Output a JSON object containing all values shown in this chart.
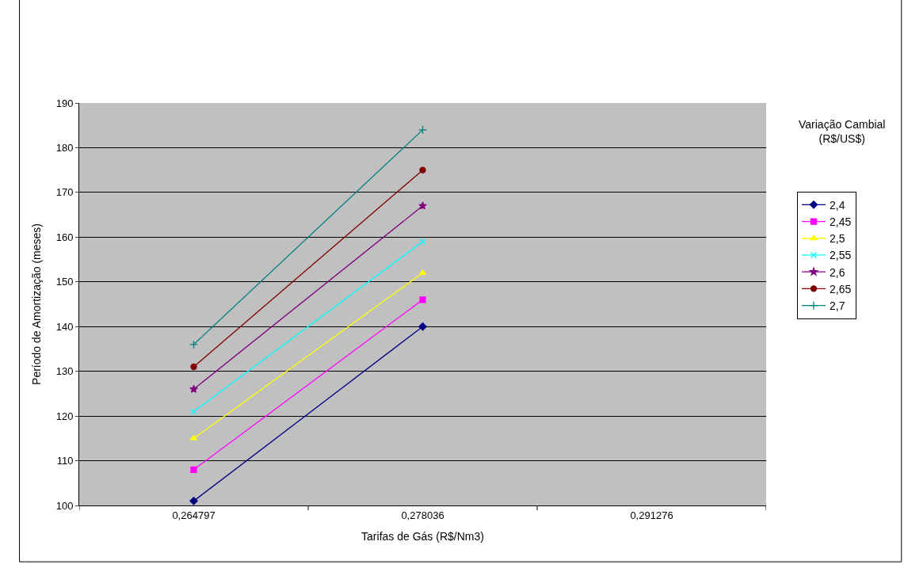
{
  "chart_data": {
    "type": "line",
    "xlabel": "Tarifas de Gás (R$/Nm3)",
    "ylabel": "Período de Amortização (meses)",
    "legend_title": "Variação Cambial (R$/US$)",
    "categories": [
      "0,264797",
      "0,278036",
      "0,291276"
    ],
    "series": [
      {
        "name": "2,4",
        "color": "#000080",
        "marker": "diamond",
        "values": [
          101,
          140,
          null
        ]
      },
      {
        "name": "2,45",
        "color": "#ff00ff",
        "marker": "square",
        "values": [
          108,
          146,
          null
        ]
      },
      {
        "name": "2,5",
        "color": "#ffff00",
        "marker": "triangle",
        "values": [
          115,
          152,
          null
        ]
      },
      {
        "name": "2,55",
        "color": "#00ffff",
        "marker": "x",
        "values": [
          121,
          159,
          null
        ]
      },
      {
        "name": "2,6",
        "color": "#800080",
        "marker": "star",
        "values": [
          126,
          167,
          null
        ]
      },
      {
        "name": "2,65",
        "color": "#800000",
        "marker": "circle",
        "values": [
          131,
          175,
          null
        ]
      },
      {
        "name": "2,7",
        "color": "#008080",
        "marker": "cross",
        "values": [
          136,
          184,
          null
        ]
      }
    ],
    "ylim": [
      100,
      190
    ],
    "yticks": [
      100,
      110,
      120,
      130,
      140,
      150,
      160,
      170,
      180,
      190
    ],
    "grid": "y",
    "legend": "right"
  }
}
